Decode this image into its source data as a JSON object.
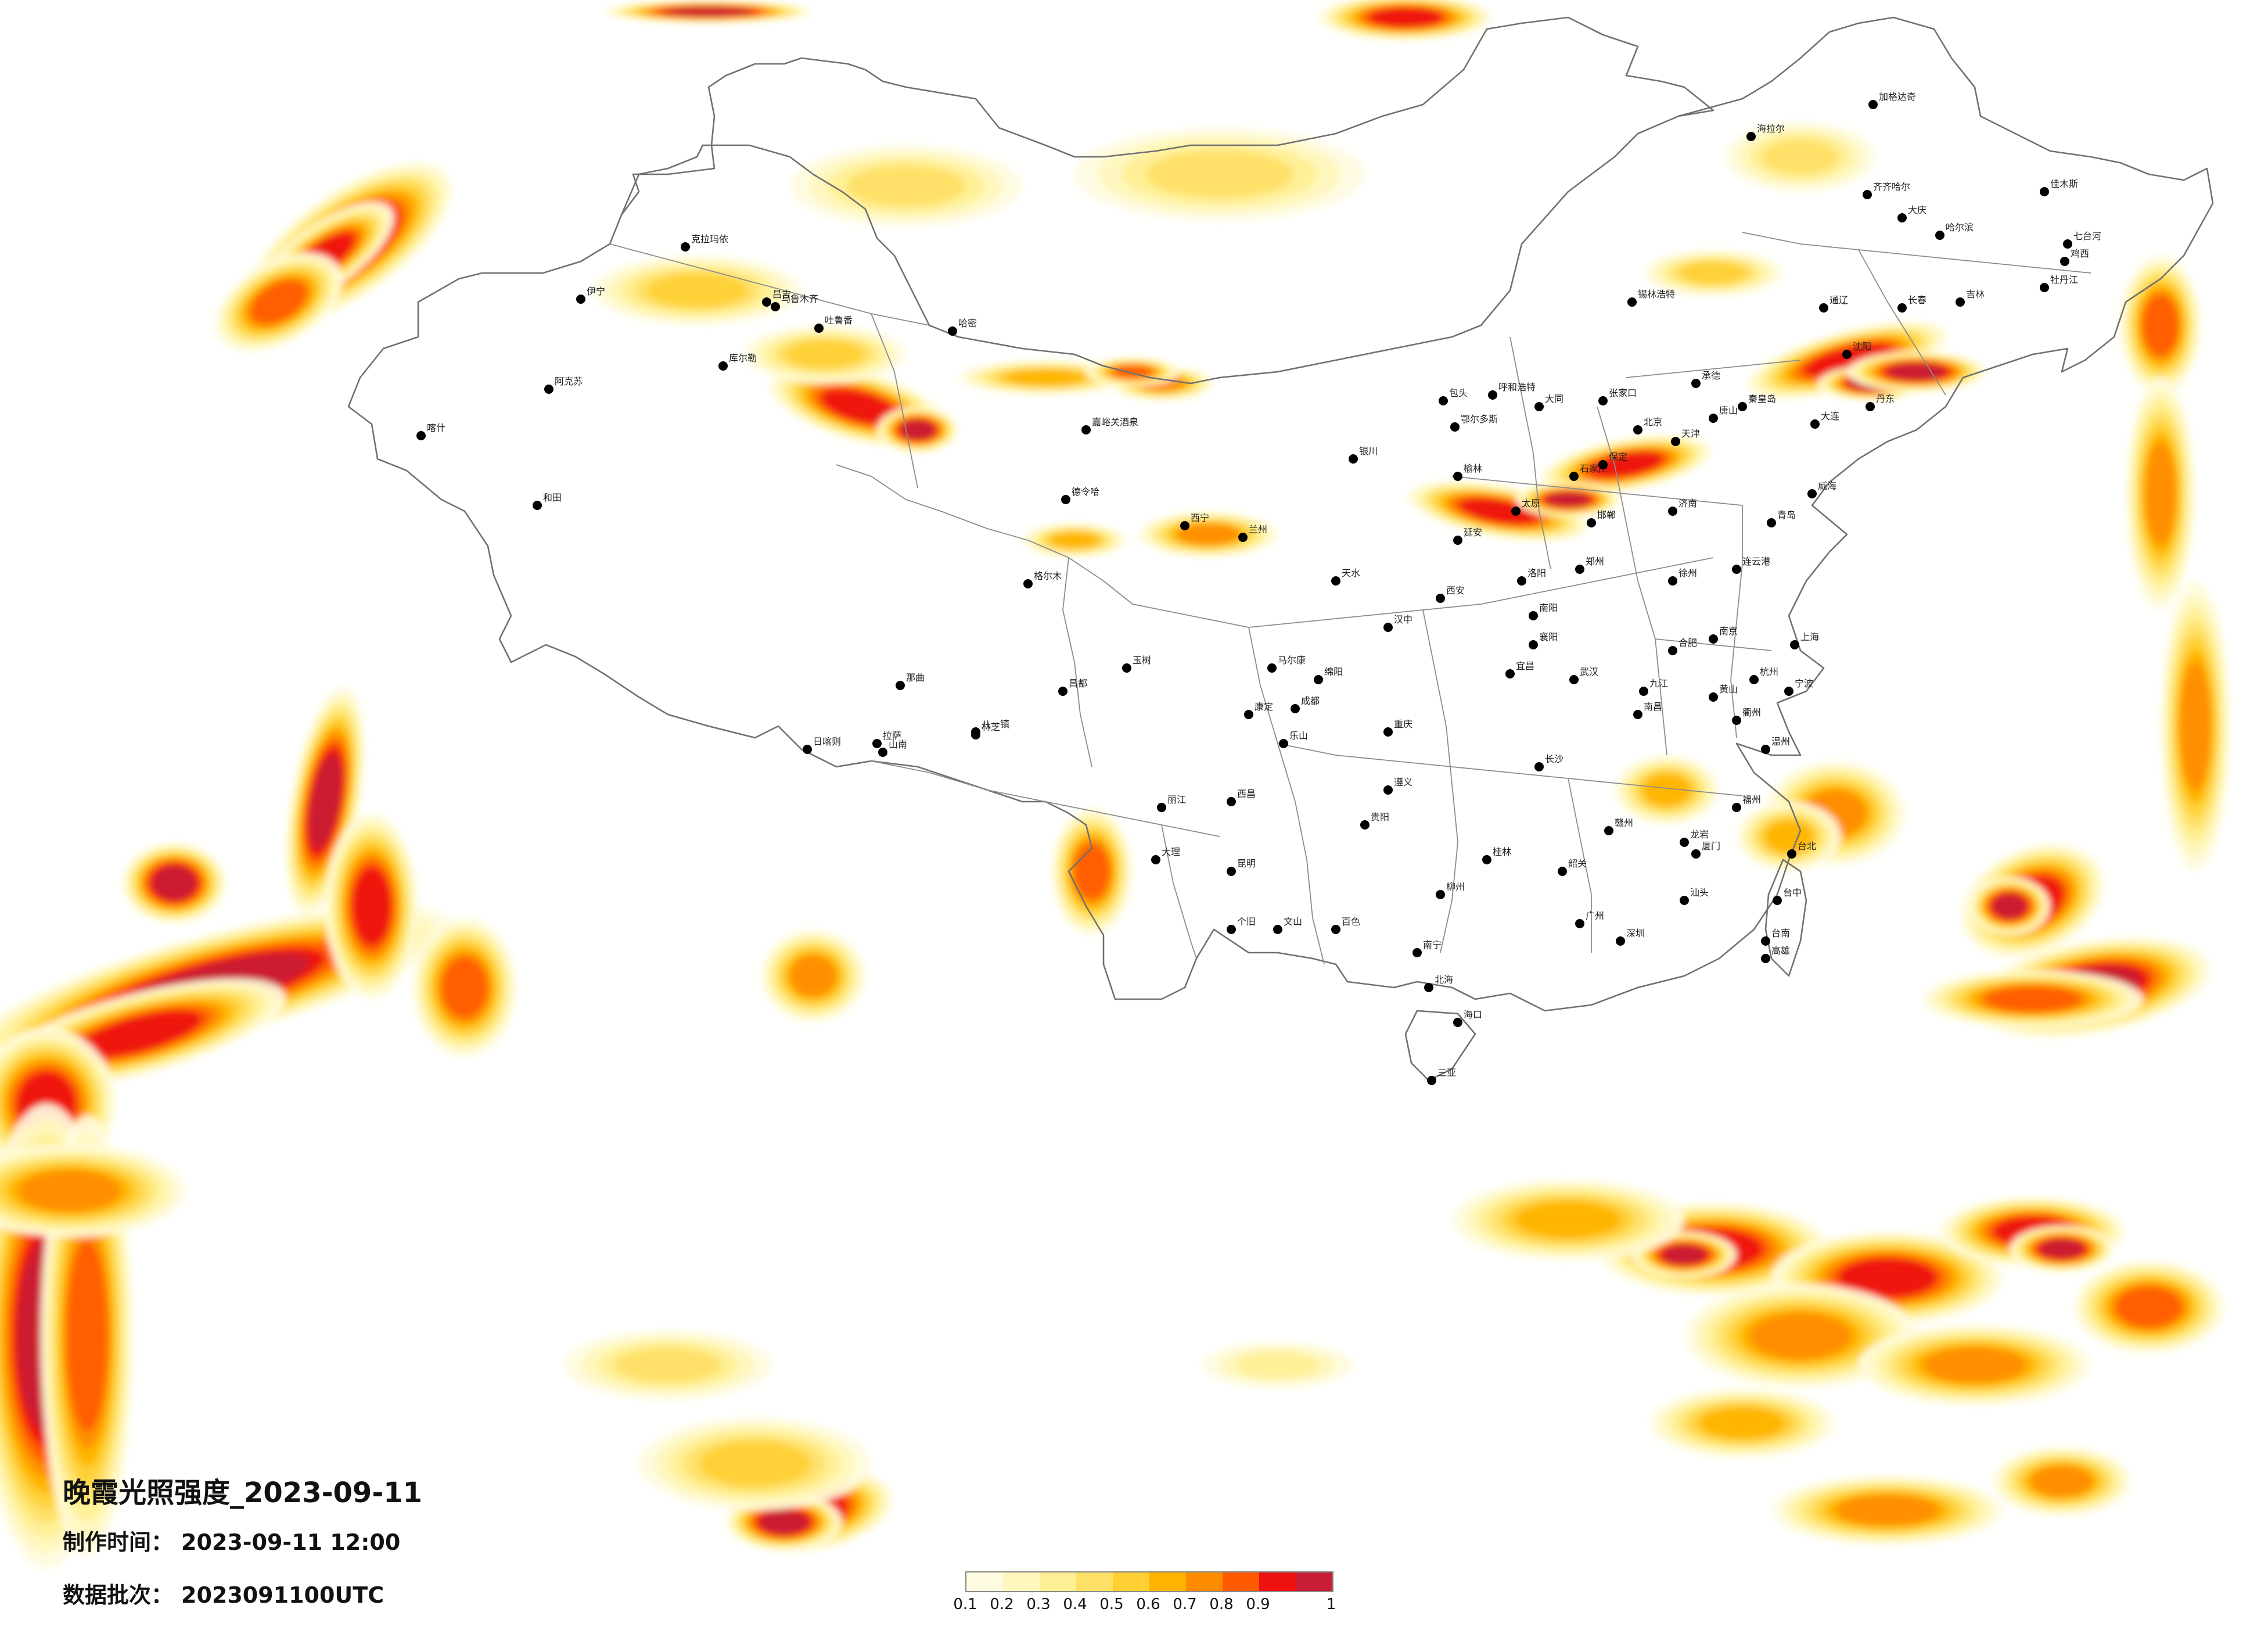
{
  "title": "晚霞光照强度_2023-09-11",
  "info": {
    "made_label": "制作时间：",
    "made_value": "2023-09-11 12:00",
    "batch_label": "数据批次：",
    "batch_value": "2023091100UTC"
  },
  "legend": {
    "ticks": [
      "0.1",
      "0.2",
      "0.3",
      "0.4",
      "0.5",
      "0.6",
      "0.7",
      "0.8",
      "0.9",
      "1"
    ],
    "colors": [
      "#fffbe0",
      "#fff7bd",
      "#ffef94",
      "#ffe066",
      "#ffcf33",
      "#ffb300",
      "#ff8c00",
      "#ff5a00",
      "#ee1111",
      "#c81e35"
    ]
  },
  "cities": [
    {
      "name": "伊宁",
      "level": 0
    },
    {
      "name": "克拉玛依",
      "level": 0
    },
    {
      "name": "昌吉",
      "level": 0
    },
    {
      "name": "乌鲁木齐",
      "level": 0
    },
    {
      "name": "吐鲁番",
      "level": 0
    },
    {
      "name": "哈密",
      "level": 0
    },
    {
      "name": "库尔勒",
      "level": 0
    },
    {
      "name": "阿克苏",
      "level": 0
    },
    {
      "name": "喀什",
      "level": 0
    },
    {
      "name": "和田",
      "level": 0
    },
    {
      "name": "嘉峪关酒泉",
      "level": 0
    },
    {
      "name": "德令哈",
      "level": 0
    },
    {
      "name": "格尔木",
      "level": 0
    },
    {
      "name": "那曲",
      "level": 0
    },
    {
      "name": "日喀则",
      "level": 0
    },
    {
      "name": "拉萨",
      "level": 0
    },
    {
      "name": "山南",
      "level": 0
    },
    {
      "name": "林芝",
      "level": 0
    },
    {
      "name": "昌都",
      "level": 0
    },
    {
      "name": "西宁",
      "level": 0
    },
    {
      "name": "兰州",
      "level": 0
    },
    {
      "name": "银川",
      "level": 0
    },
    {
      "name": "呼和浩特",
      "level": 0
    },
    {
      "name": "包头",
      "level": 0
    },
    {
      "name": "鄂尔多斯",
      "level": 0
    },
    {
      "name": "海拉尔",
      "level": 0
    },
    {
      "name": "加格达奇",
      "level": 0
    },
    {
      "name": "齐齐哈尔",
      "level": 0
    },
    {
      "name": "大庆",
      "level": 0
    },
    {
      "name": "哈尔滨",
      "level": 0
    },
    {
      "name": "佳木斯",
      "level": 0
    },
    {
      "name": "七台河",
      "level": 0
    },
    {
      "name": "鸡西",
      "level": 0
    },
    {
      "name": "牡丹江",
      "level": 0
    },
    {
      "name": "长春",
      "level": 0
    },
    {
      "name": "吉林",
      "level": 0
    },
    {
      "name": "通辽",
      "level": 0
    },
    {
      "name": "锡林浩特",
      "level": 0
    },
    {
      "name": "沈阳",
      "level": 0
    },
    {
      "name": "丹东",
      "level": 0
    },
    {
      "name": "大连",
      "level": 0
    },
    {
      "name": "北京",
      "level": 0
    },
    {
      "name": "天津",
      "level": 0
    },
    {
      "name": "石家庄",
      "level": 0
    },
    {
      "name": "太原",
      "level": 0
    },
    {
      "name": "济南",
      "level": 0
    },
    {
      "name": "青岛",
      "level": 0
    },
    {
      "name": "威海",
      "level": 0
    },
    {
      "name": "郑州",
      "level": 0
    },
    {
      "name": "西安",
      "level": 0
    },
    {
      "name": "武汉",
      "level": 0
    },
    {
      "name": "合肥",
      "level": 0
    },
    {
      "name": "南京",
      "level": 0
    },
    {
      "name": "上海",
      "level": 0
    },
    {
      "name": "杭州",
      "level": 0
    },
    {
      "name": "宁波",
      "level": 0
    },
    {
      "name": "温州",
      "level": 0
    },
    {
      "name": "福州",
      "level": 0
    },
    {
      "name": "厦门",
      "level": 0
    },
    {
      "name": "台北",
      "level": 0
    },
    {
      "name": "台中",
      "level": 0
    },
    {
      "name": "台南",
      "level": 0
    },
    {
      "name": "高雄",
      "level": 0
    },
    {
      "name": "南昌",
      "level": 0
    },
    {
      "name": "长沙",
      "level": 0
    },
    {
      "name": "广州",
      "level": 0
    },
    {
      "name": "深圳",
      "level": 0
    },
    {
      "name": "汕头",
      "level": 0
    },
    {
      "name": "南宁",
      "level": 0
    },
    {
      "name": "北海",
      "level": 0
    },
    {
      "name": "海口",
      "level": 0
    },
    {
      "name": "三亚",
      "level": 0
    },
    {
      "name": "贵阳",
      "level": 0
    },
    {
      "name": "昆明",
      "level": 0
    },
    {
      "name": "大理",
      "level": 0
    },
    {
      "name": "丽江",
      "level": 0
    },
    {
      "name": "成都",
      "level": 0
    },
    {
      "name": "重庆",
      "level": 0
    },
    {
      "name": "宜昌",
      "level": 0
    },
    {
      "name": "赣州",
      "level": 0
    },
    {
      "name": "桂林",
      "level": 0
    },
    {
      "name": "柳州",
      "level": 0
    },
    {
      "name": "遵义",
      "level": 0
    },
    {
      "name": "绵阳",
      "level": 0
    },
    {
      "name": "汉中",
      "level": 0
    },
    {
      "name": "天水",
      "level": 0
    },
    {
      "name": "延安",
      "level": 0
    },
    {
      "name": "榆林",
      "level": 0
    },
    {
      "name": "大同",
      "level": 0
    },
    {
      "name": "张家口",
      "level": 0
    },
    {
      "name": "承德",
      "level": 0
    },
    {
      "name": "秦皇岛",
      "level": 0
    },
    {
      "name": "唐山",
      "level": 0
    },
    {
      "name": "保定",
      "level": 0
    },
    {
      "name": "邯郸",
      "level": 0
    },
    {
      "name": "洛阳",
      "level": 0
    },
    {
      "name": "南阳",
      "level": 0
    },
    {
      "name": "襄阳",
      "level": 0
    },
    {
      "name": "徐州",
      "level": 0
    },
    {
      "name": "连云港",
      "level": 0
    },
    {
      "name": "九江",
      "level": 0
    },
    {
      "name": "黄山",
      "level": 0
    },
    {
      "name": "衢州",
      "level": 0
    },
    {
      "name": "龙岩",
      "level": 0
    },
    {
      "name": "韶关",
      "level": 0
    },
    {
      "name": "百色",
      "level": 0
    },
    {
      "name": "个旧",
      "level": 0
    },
    {
      "name": "文山",
      "level": 0
    },
    {
      "name": "西昌",
      "level": 0
    },
    {
      "name": "乐山",
      "level": 0
    },
    {
      "name": "康定",
      "level": 0
    },
    {
      "name": "马尔康",
      "level": 0
    },
    {
      "name": "玉树",
      "level": 0
    },
    {
      "name": "八一镇",
      "level": 0
    }
  ]
}
